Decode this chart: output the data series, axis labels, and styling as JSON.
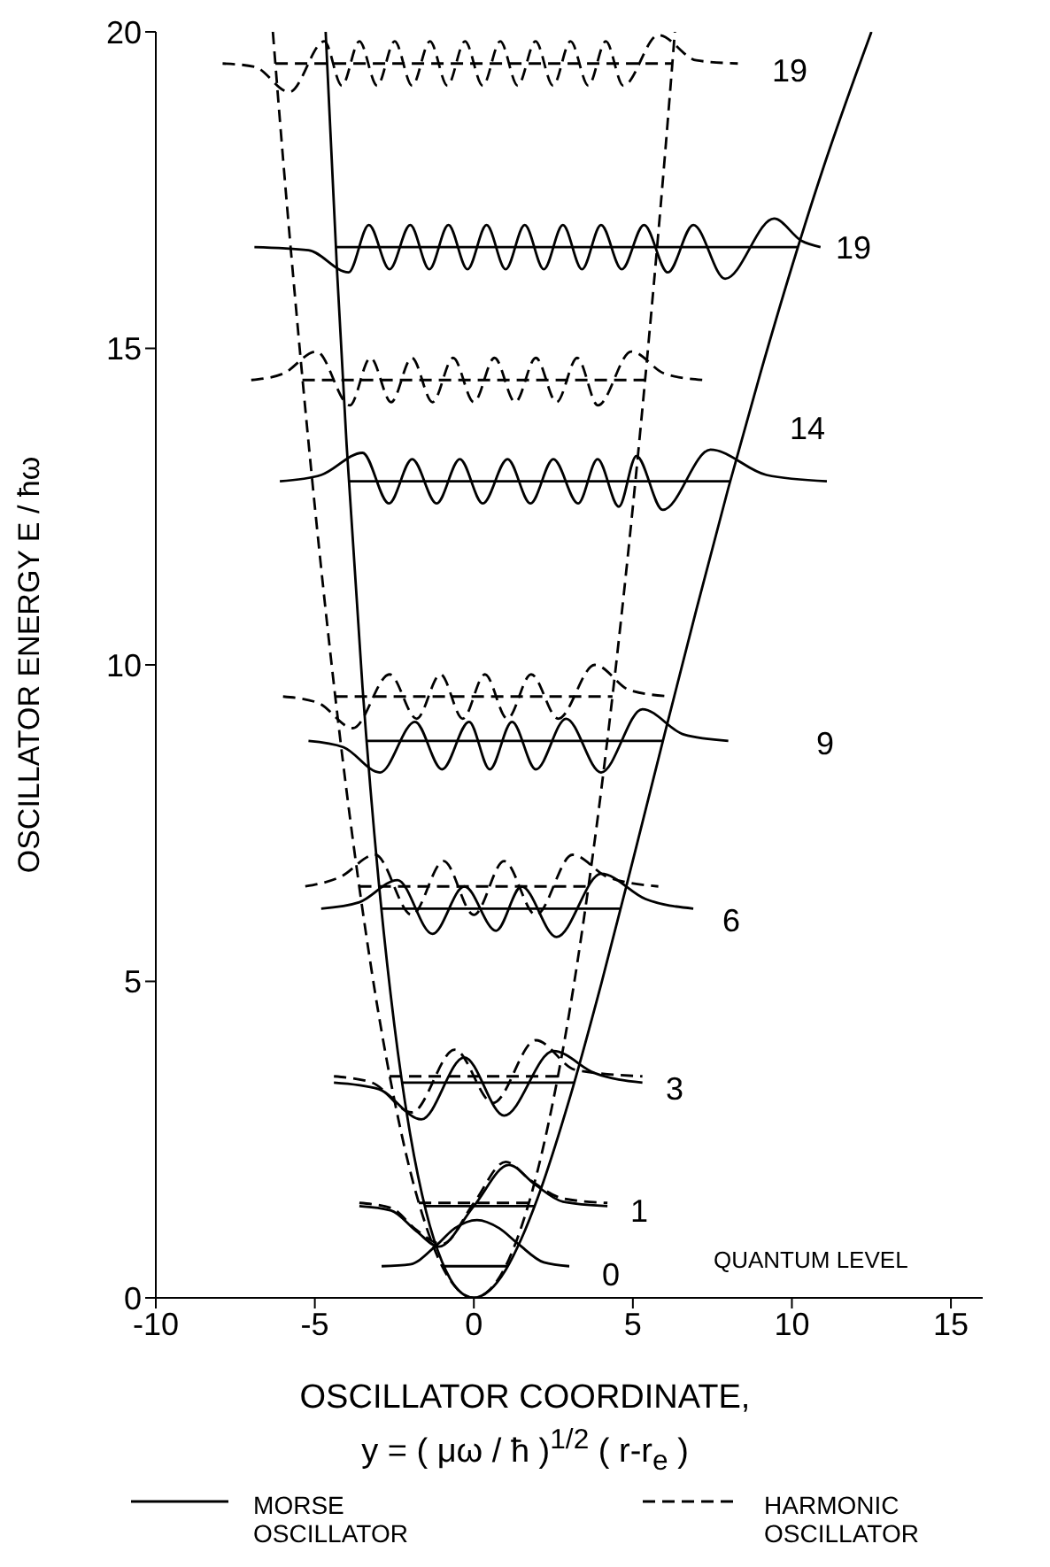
{
  "chart_data": {
    "type": "line",
    "xlabel": "OSCILLATOR COORDINATE,\ny = ( μω / ħ )$^{1/2}$ ( r-r$_{e}$ )",
    "ylabel": "OSCILLATOR ENERGY  E / ħω",
    "xlim": [
      -10,
      16
    ],
    "ylim": [
      0,
      20
    ],
    "xticks": [
      -10,
      -5,
      0,
      5,
      10,
      15
    ],
    "yticks": [
      0,
      5,
      10,
      15,
      20
    ],
    "legend": "bottom",
    "marker": "none",
    "annotations": [
      "QUANTUM LEVEL",
      "0",
      "1",
      "3",
      "6",
      "9",
      "14",
      "19",
      "19"
    ],
    "series": [
      {
        "name": "MORSE OSCILLATOR",
        "color": "#000000",
        "line_style": "solid",
        "x": [
          -4.66,
          -4.3,
          -4,
          -3.5,
          -3,
          -2.5,
          -2,
          -1.5,
          -1,
          -0.5,
          0,
          0.5,
          1,
          1.5,
          2,
          3,
          4,
          5,
          6,
          7,
          8,
          9,
          10,
          11,
          12,
          12.5
        ],
        "values": [
          20,
          16.21,
          13.47,
          9.64,
          6.62,
          4.31,
          2.58,
          1.36,
          0.57,
          0.13,
          0,
          0.12,
          0.44,
          0.94,
          1.57,
          3.13,
          4.95,
          6.91,
          8.91,
          10.88,
          12.79,
          14.59,
          16.29,
          17.87,
          19.31,
          20
        ]
      },
      {
        "name": "HARMONIC OSCILLATOR",
        "color": "#000000",
        "line_style": "dashed",
        "x": [
          -6.32,
          -6,
          -5.5,
          -5,
          -4.5,
          -4,
          -3.5,
          -3,
          -2.5,
          -2,
          -1.5,
          -1,
          -0.5,
          0,
          0.5,
          1,
          1.5,
          2,
          2.5,
          3,
          3.5,
          4,
          4.5,
          5,
          5.5,
          6,
          6.32
        ],
        "values": [
          20,
          18,
          15.13,
          12.5,
          10.13,
          8,
          6.13,
          4.5,
          3.13,
          2,
          1.13,
          0.5,
          0.13,
          0,
          0.13,
          0.5,
          1.13,
          2,
          3.13,
          4.5,
          6.13,
          8,
          10.13,
          12.5,
          15.13,
          18,
          20
        ]
      },
      {
        "color": "#000000",
        "line_style": "solid",
        "x": [
          -0.94,
          1.07
        ],
        "values": [
          0.5,
          0.5
        ]
      },
      {
        "color": "#000000",
        "line_style": "solid",
        "x": [
          -2.9,
          -2,
          -1.2,
          -0.6,
          0.1,
          0.8,
          1.4,
          2.2,
          3.0
        ],
        "values": [
          0.5,
          0.53,
          0.82,
          1.1,
          1.23,
          1.1,
          0.85,
          0.56,
          0.5
        ]
      },
      {
        "color": "#000000",
        "line_style": "solid",
        "x": [
          -1.54,
          1.92
        ],
        "values": [
          1.45,
          1.45
        ]
      },
      {
        "color": "#000000",
        "line_style": "solid",
        "x": [
          -3.6,
          -2.6,
          -1.8,
          -1.1,
          0,
          1.1,
          1.9,
          2.8,
          4.2
        ],
        "values": [
          1.45,
          1.38,
          1.05,
          0.81,
          1.45,
          2.1,
          1.8,
          1.52,
          1.45
        ]
      },
      {
        "color": "#000000",
        "line_style": "dashed",
        "x": [
          -1.73,
          1.73
        ],
        "values": [
          1.5,
          1.5
        ]
      },
      {
        "color": "#000000",
        "line_style": "dashed",
        "x": [
          -3.6,
          -2.6,
          -1.8,
          -1.0,
          0,
          1.0,
          1.8,
          2.8,
          4.2
        ],
        "values": [
          1.5,
          1.42,
          1.07,
          0.85,
          1.5,
          2.15,
          1.85,
          1.57,
          1.5
        ]
      },
      {
        "color": "#000000",
        "line_style": "solid",
        "x": [
          -2.26,
          3.16
        ],
        "values": [
          3.4,
          3.4
        ]
      },
      {
        "color": "#000000",
        "line_style": "solid",
        "x": [
          -4.4,
          -3,
          -1.65,
          -0.3,
          0.95,
          2.5,
          3.8,
          5.3
        ],
        "values": [
          3.4,
          3.3,
          2.82,
          3.8,
          2.88,
          3.9,
          3.55,
          3.4
        ]
      },
      {
        "color": "#000000",
        "line_style": "dashed",
        "x": [
          -2.65,
          2.65
        ],
        "values": [
          3.5,
          3.5
        ]
      },
      {
        "color": "#000000",
        "line_style": "dashed",
        "x": [
          -4.4,
          -3.2,
          -1.95,
          -0.6,
          0.6,
          1.95,
          3.2,
          5.3
        ],
        "values": [
          3.5,
          3.4,
          2.93,
          3.92,
          3.08,
          4.07,
          3.6,
          3.5
        ]
      },
      {
        "color": "#000000",
        "line_style": "solid",
        "x": [
          -2.91,
          4.62
        ],
        "values": [
          6.15,
          6.15
        ]
      },
      {
        "color": "#000000",
        "line_style": "solid",
        "x": [
          -4.8,
          -3.6,
          -2.4,
          -1.3,
          -0.3,
          0.7,
          1.5,
          2.6,
          4.0,
          5.4,
          6.9
        ],
        "values": [
          6.15,
          6.25,
          6.6,
          5.75,
          6.5,
          5.8,
          6.5,
          5.7,
          6.7,
          6.3,
          6.15
        ]
      },
      {
        "color": "#000000",
        "line_style": "dashed",
        "x": [
          -3.61,
          3.61
        ],
        "values": [
          6.5,
          6.5
        ]
      },
      {
        "color": "#000000",
        "line_style": "dashed",
        "x": [
          -5.3,
          -4.2,
          -3.1,
          -1.95,
          -0.95,
          0,
          0.95,
          1.95,
          3.1,
          4.2,
          5.8
        ],
        "values": [
          6.5,
          6.65,
          7.0,
          6.05,
          6.9,
          6.05,
          6.9,
          6.05,
          7.0,
          6.65,
          6.5
        ]
      },
      {
        "color": "#000000",
        "line_style": "solid",
        "x": [
          -3.37,
          5.94
        ],
        "values": [
          8.8,
          8.8
        ]
      },
      {
        "color": "#000000",
        "line_style": "solid",
        "x": [
          -5.2,
          -4.1,
          -2.95,
          -1.85,
          -1.0,
          -0.15,
          0.5,
          1.2,
          1.95,
          2.9,
          4.0,
          5.3,
          6.6,
          8.0
        ],
        "values": [
          8.8,
          8.7,
          8.3,
          9.1,
          8.35,
          9.1,
          8.35,
          9.1,
          8.35,
          9.15,
          8.3,
          9.3,
          8.9,
          8.8
        ]
      },
      {
        "color": "#000000",
        "line_style": "dashed",
        "x": [
          -4.36,
          4.36
        ],
        "values": [
          9.5,
          9.5
        ]
      },
      {
        "color": "#000000",
        "line_style": "dashed",
        "x": [
          -6.0,
          -4.9,
          -3.8,
          -2.65,
          -1.8,
          -1.05,
          -0.35,
          0.35,
          1.05,
          1.8,
          2.65,
          3.8,
          4.9,
          6.2
        ],
        "values": [
          9.5,
          9.4,
          9.0,
          9.85,
          9.15,
          9.85,
          9.15,
          9.85,
          9.15,
          9.85,
          9.15,
          10.0,
          9.6,
          9.5
        ]
      },
      {
        "color": "#000000",
        "line_style": "solid",
        "x": [
          -3.93,
          8.06
        ],
        "values": [
          12.9,
          12.9
        ]
      },
      {
        "color": "#000000",
        "line_style": "solid",
        "x": [
          -6.1,
          -4.8,
          -3.5,
          -2.67,
          -1.94,
          -1.17,
          -0.44,
          0.28,
          1.06,
          1.78,
          2.5,
          3.28,
          3.89,
          4.56,
          5.11,
          5.94,
          7.44,
          9.2,
          11.1
        ],
        "values": [
          12.9,
          13.0,
          13.35,
          12.55,
          13.25,
          12.55,
          13.25,
          12.55,
          13.25,
          12.55,
          13.25,
          12.55,
          13.25,
          12.5,
          13.3,
          12.45,
          13.4,
          13.0,
          12.9
        ]
      },
      {
        "color": "#000000",
        "line_style": "dashed",
        "x": [
          -5.39,
          5.39
        ],
        "values": [
          14.5,
          14.5
        ]
      },
      {
        "color": "#000000",
        "line_style": "dashed",
        "x": [
          -7.0,
          -6.0,
          -4.95,
          -3.9,
          -3.25,
          -2.6,
          -1.95,
          -1.3,
          -0.65,
          0,
          0.65,
          1.3,
          1.95,
          2.6,
          3.25,
          3.9,
          4.95,
          6.0,
          7.2
        ],
        "values": [
          14.5,
          14.6,
          14.95,
          14.1,
          14.85,
          14.15,
          14.85,
          14.15,
          14.85,
          14.15,
          14.85,
          14.15,
          14.85,
          14.15,
          14.85,
          14.1,
          14.95,
          14.6,
          14.5
        ]
      },
      {
        "color": "#000000",
        "line_style": "solid",
        "x": [
          -4.34,
          10.19
        ],
        "values": [
          16.6,
          16.6
        ]
      },
      {
        "color": "#000000",
        "line_style": "solid",
        "x": [
          -6.9,
          -5.2,
          -3.94,
          -3.3,
          -2.65,
          -2.0,
          -1.4,
          -0.8,
          -0.2,
          0.4,
          1.0,
          1.6,
          2.2,
          2.8,
          3.4,
          4.0,
          4.65,
          5.35,
          6.1,
          6.9,
          7.9,
          9.44,
          10.3,
          10.9
        ],
        "values": [
          16.6,
          16.55,
          16.2,
          16.95,
          16.25,
          16.95,
          16.25,
          16.95,
          16.25,
          16.95,
          16.25,
          16.95,
          16.25,
          16.95,
          16.25,
          16.95,
          16.25,
          16.95,
          16.2,
          16.95,
          16.1,
          17.05,
          16.7,
          16.6
        ]
      },
      {
        "color": "#000000",
        "line_style": "dashed",
        "x": [
          -6.24,
          6.24
        ],
        "values": [
          19.5,
          19.5
        ]
      },
      {
        "color": "#000000",
        "line_style": "dashed",
        "x": [
          -7.9,
          -6.9,
          -5.8,
          -4.7,
          -4.15,
          -3.6,
          -3.04,
          -2.49,
          -1.94,
          -1.38,
          -0.83,
          -0.28,
          0.28,
          0.83,
          1.38,
          1.94,
          2.49,
          3.04,
          3.6,
          4.15,
          4.7,
          5.8,
          7.0,
          8.3
        ],
        "values": [
          19.5,
          19.45,
          19.05,
          19.85,
          19.15,
          19.85,
          19.15,
          19.85,
          19.15,
          19.85,
          19.15,
          19.85,
          19.15,
          19.85,
          19.15,
          19.85,
          19.15,
          19.85,
          19.15,
          19.85,
          19.15,
          19.95,
          19.55,
          19.5
        ]
      }
    ]
  }
}
